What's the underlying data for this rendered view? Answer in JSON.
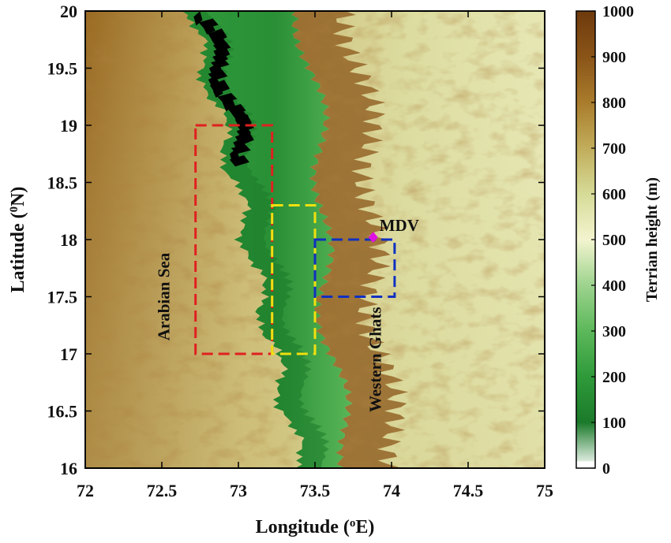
{
  "chart_data": {
    "type": "map",
    "xlabel_main": "Longitude (",
    "xlabel_sup": "o",
    "xlabel_end": "E)",
    "ylabel_main": "Latitude (",
    "ylabel_sup": "0",
    "ylabel_end": "N)",
    "xlim": [
      72,
      75
    ],
    "ylim": [
      16,
      20
    ],
    "x_ticks": [
      {
        "value": 72,
        "label": "72"
      },
      {
        "value": 72.5,
        "label": "72.5"
      },
      {
        "value": 73,
        "label": "73"
      },
      {
        "value": 73.5,
        "label": "73.5"
      },
      {
        "value": 74,
        "label": "74"
      },
      {
        "value": 74.5,
        "label": "74.5"
      },
      {
        "value": 75,
        "label": "75"
      }
    ],
    "y_ticks": [
      {
        "value": 16,
        "label": "16"
      },
      {
        "value": 16.5,
        "label": "16.5"
      },
      {
        "value": 17,
        "label": "17"
      },
      {
        "value": 17.5,
        "label": "17.5"
      },
      {
        "value": 18,
        "label": "18"
      },
      {
        "value": 18.5,
        "label": "18.5"
      },
      {
        "value": 19,
        "label": "19"
      },
      {
        "value": 19.5,
        "label": "19.5"
      },
      {
        "value": 20,
        "label": "20"
      }
    ],
    "colorbar": {
      "title": "Terrian height (m)",
      "range": [
        0,
        1000
      ],
      "ticks": [
        {
          "value": 0,
          "label": "0"
        },
        {
          "value": 100,
          "label": "100"
        },
        {
          "value": 200,
          "label": "200"
        },
        {
          "value": 300,
          "label": "300"
        },
        {
          "value": 400,
          "label": "400"
        },
        {
          "value": 500,
          "label": "500"
        },
        {
          "value": 600,
          "label": "600"
        },
        {
          "value": 700,
          "label": "700"
        },
        {
          "value": 800,
          "label": "800"
        },
        {
          "value": 900,
          "label": "900"
        },
        {
          "value": 1000,
          "label": "1000"
        }
      ],
      "colors": [
        "#ffffff",
        "#1b7a2a",
        "#2f9a3a",
        "#5cb85a",
        "#9dd38e",
        "#f3f4cf",
        "#d6db97",
        "#c1ad5b",
        "#a97c2c",
        "#8a5418",
        "#6e3a0c"
      ]
    },
    "boxes": [
      {
        "name": "red-box",
        "color": "#e02020",
        "lon": [
          72.72,
          73.22
        ],
        "lat": [
          17.0,
          19.0
        ]
      },
      {
        "name": "yellow-box",
        "color": "#f0e010",
        "lon": [
          73.22,
          73.5
        ],
        "lat": [
          17.0,
          18.3
        ]
      },
      {
        "name": "blue-box",
        "color": "#1030c0",
        "lon": [
          73.5,
          74.02
        ],
        "lat": [
          17.5,
          18.0
        ]
      }
    ],
    "station": {
      "name": "MDV",
      "label": "MDV",
      "lon": 73.88,
      "lat": 18.02,
      "color": "#e010e0"
    },
    "labels": [
      {
        "name": "arabian-sea-label",
        "text": "Arabian Sea",
        "lon": 72.55,
        "lat": 17.5
      },
      {
        "name": "western-ghats-label",
        "text": "Western Ghats",
        "lon": 73.93,
        "lat": 16.95
      }
    ]
  }
}
